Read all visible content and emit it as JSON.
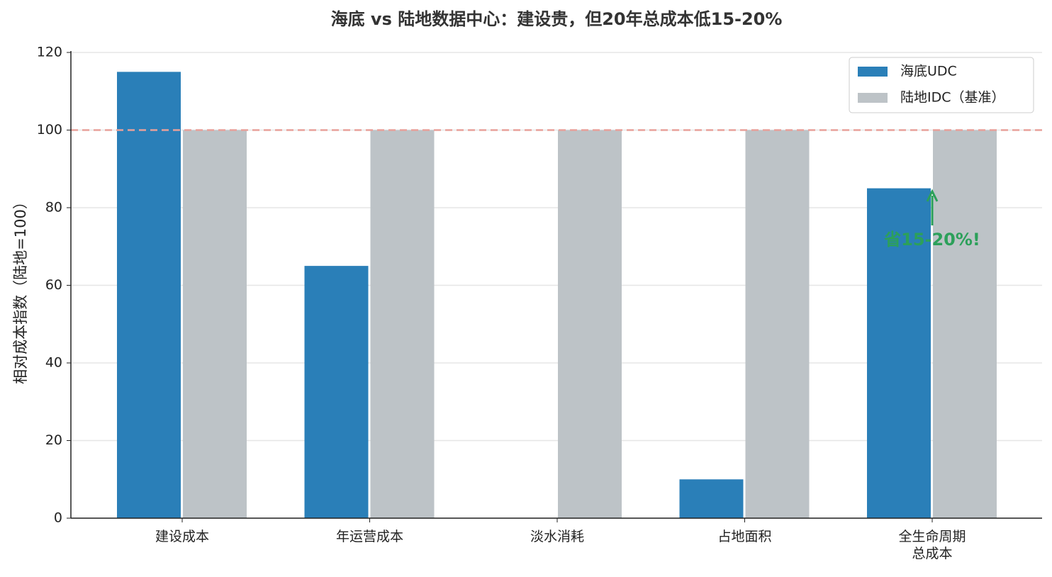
{
  "chart_data": {
    "type": "bar",
    "title": "海底 vs 陆地数据中心：建设贵，但20年总成本低15-20%",
    "y_label": "相对成本指数（陆地=100）",
    "categories": [
      "建设成本",
      "年运营成本",
      "淡水消耗",
      "占地面积",
      "全生命周期\n总成本"
    ],
    "series": [
      {
        "name": "海底UDC",
        "color": "#2a7fb8",
        "values": [
          115,
          65,
          0,
          10,
          85
        ]
      },
      {
        "name": "陆地IDC（基准）",
        "color": "#bdc3c7",
        "values": [
          100,
          100,
          100,
          100,
          100
        ]
      }
    ],
    "ylim": [
      0,
      120
    ],
    "yticks": [
      0,
      20,
      40,
      60,
      80,
      100,
      120
    ],
    "grid": true,
    "reference_line": {
      "value": 100,
      "color": "#e8a09a"
    },
    "annotation": {
      "text": "省15-20%!",
      "color": "#2ca05a"
    },
    "legend": "upper right"
  }
}
